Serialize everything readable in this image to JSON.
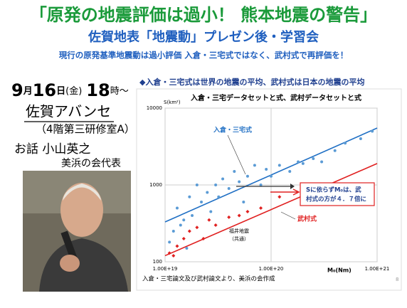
{
  "title": "「原発の地震評価は過小！ 熊本地震の警告」",
  "subtitle": "佐賀地表「地震動」プレゼン後・学習会",
  "lead": "現行の原発基準地震動は過小評価 入倉・三宅式ではなく、武村式で再評価を！",
  "date": {
    "month": "9",
    "month_unit": "月",
    "day": "16",
    "day_unit": "日",
    "weekday": "(金)",
    "hour": "18",
    "hour_unit": "時～"
  },
  "venue": "佐賀アバンセ",
  "room": "（4階第三研修室A）",
  "talk": "お話 小山英之",
  "speaker_org": "美浜の会代表",
  "chart_heading": "◆入倉・三宅式は世界の地震の平均、武村式は日本の地震の平均",
  "footnote": "入倉・三宅論文及び武村論文より、美浜の会作成",
  "page_number": "8",
  "chart_data": {
    "type": "scatter",
    "title": "入倉・三宅データセットと式、武村データセットと式",
    "y_label": "S(km²)",
    "x_label": "M₀(Nm)",
    "xscale": "log",
    "yscale": "log",
    "xlim": [
      1e+19,
      1e+21
    ],
    "ylim": [
      100,
      10000
    ],
    "xticks": [
      {
        "value": 1e+19,
        "label": "1.00E+19"
      },
      {
        "value": 1e+20,
        "label": "1.00E+20"
      },
      {
        "value": 1e+21,
        "label": "1.00E+21"
      }
    ],
    "yticks": [
      100,
      1000,
      10000
    ],
    "grid": true,
    "series": [
      {
        "name": "入倉・三宅式",
        "color": "#1f6fc4",
        "mode": "line",
        "x": [
          1e+19,
          1e+21
        ],
        "values": [
          330,
          5500
        ]
      },
      {
        "name": "武村式",
        "color": "#e02020",
        "mode": "line",
        "x": [
          1e+19,
          1e+21
        ],
        "values": [
          120,
          1900
        ]
      },
      {
        "color": "#5b9bd5",
        "mode": "points",
        "shape": "circle",
        "x": [
          1.1e+19,
          1.2e+19,
          1.3e+19,
          1.4e+19,
          1.5e+19,
          1.6e+19,
          1.7e+19,
          1.8e+19,
          2e+19,
          2.2e+19,
          2.5e+19,
          2.7e+19,
          3e+19,
          3.2e+19,
          3.5e+19,
          4e+19,
          4.5e+19,
          5e+19,
          5.5e+19,
          6e+19,
          7e+19,
          8e+19,
          9e+19,
          1e+20,
          1.2e+20,
          1.5e+20,
          1.8e+20,
          2e+20,
          2.5e+20,
          3e+20,
          4e+20,
          5e+20,
          7e+20,
          9e+20
        ],
        "values": [
          180,
          250,
          500,
          300,
          350,
          150,
          700,
          400,
          1000,
          600,
          800,
          450,
          1000,
          700,
          1200,
          900,
          1500,
          1100,
          600,
          1300,
          1800,
          1000,
          1600,
          1300,
          1800,
          1500,
          2000,
          1900,
          2200,
          2000,
          2800,
          3500,
          4000,
          5000
        ]
      },
      {
        "color": "#e02020",
        "mode": "points",
        "shape": "diamond",
        "x": [
          1.1e+19,
          1.2e+19,
          1.3e+19,
          1.5e+19,
          1.7e+19,
          2e+19,
          2.3e+19,
          2.6e+19,
          3e+19,
          4e+19,
          5e+19,
          6e+19,
          8e+19,
          1.2e+20
        ],
        "values": [
          130,
          120,
          160,
          200,
          250,
          280,
          200,
          350,
          300,
          380,
          400,
          450,
          500,
          700
        ]
      }
    ],
    "annotations": [
      "福井地震",
      "（共通）",
      "Sに依らずM₀は、武",
      "村式の方が４．７倍に"
    ]
  }
}
